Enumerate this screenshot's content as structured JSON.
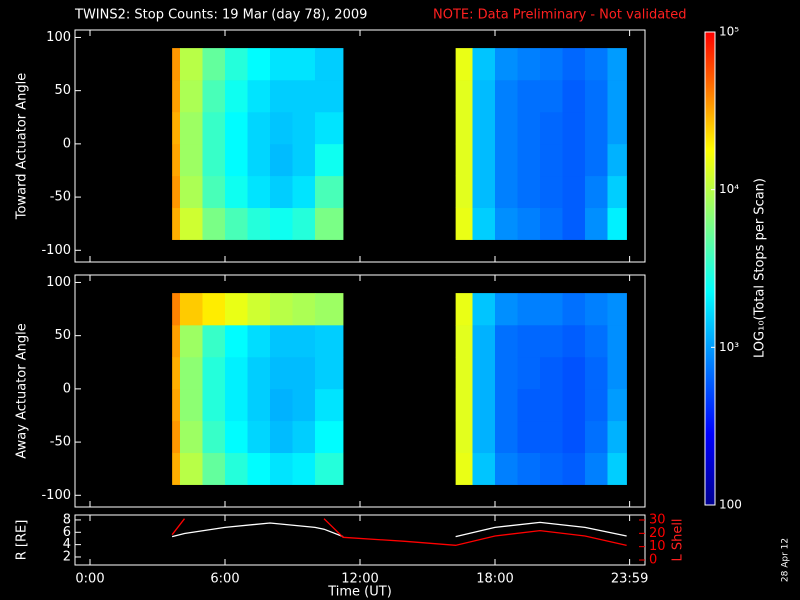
{
  "chart_data": [
    {
      "type": "heatmap",
      "title": "TWINS2: Stop Counts: 19 Mar (day  78), 2009",
      "note": "NOTE: Data Preliminary - Not validated",
      "ylabel": "Toward Actuator Angle",
      "ylim": [
        -111,
        107
      ],
      "yticks": [
        -100,
        -50,
        0,
        50,
        100
      ],
      "x_edges": [
        3.65,
        4,
        5,
        6,
        7,
        8,
        9,
        10,
        11.25,
        16.25,
        17,
        18,
        19,
        20,
        21,
        22,
        23,
        23.85
      ],
      "y_edges": [
        -90,
        -60,
        -30,
        0,
        30,
        60,
        90
      ],
      "z": [
        [
          30000,
          35000,
          32000,
          30000,
          33000,
          35000
        ],
        [
          12000,
          9000,
          8000,
          8000,
          9000,
          10000
        ],
        [
          6000,
          4000,
          3500,
          3500,
          4000,
          5000
        ],
        [
          4000,
          2500,
          2200,
          2200,
          2500,
          3000
        ],
        [
          3000,
          1800,
          1600,
          1600,
          1800,
          2200
        ],
        [
          2500,
          1500,
          1300,
          1400,
          1500,
          1800
        ],
        [
          3000,
          1800,
          1500,
          1500,
          1500,
          1800
        ],
        [
          6000,
          4000,
          2500,
          1800,
          1500,
          1500
        ],
        [
          null,
          null,
          null,
          null,
          null,
          null
        ],
        [
          15000,
          14000,
          14000,
          14000,
          14000,
          15000
        ],
        [
          1500,
          1300,
          1300,
          1300,
          1300,
          1400
        ],
        [
          900,
          800,
          800,
          800,
          800,
          900
        ],
        [
          800,
          700,
          700,
          700,
          700,
          800
        ],
        [
          700,
          650,
          650,
          650,
          700,
          750
        ],
        [
          600,
          600,
          600,
          600,
          600,
          650
        ],
        [
          900,
          800,
          700,
          700,
          700,
          750
        ],
        [
          2000,
          1500,
          1200,
          1000,
          1000,
          1000
        ]
      ]
    },
    {
      "type": "heatmap",
      "ylabel": "Away Actuator Angle",
      "ylim": [
        -111,
        107
      ],
      "yticks": [
        -100,
        -50,
        0,
        50,
        100
      ],
      "x_edges": [
        3.65,
        4,
        5,
        6,
        7,
        8,
        9,
        10,
        11.25,
        16.25,
        17,
        18,
        19,
        20,
        21,
        22,
        23,
        23.85
      ],
      "y_edges": [
        -90,
        -60,
        -30,
        0,
        30,
        60,
        90
      ],
      "z": [
        [
          30000,
          35000,
          32000,
          30000,
          33000,
          40000
        ],
        [
          10000,
          8000,
          7000,
          7000,
          8000,
          25000
        ],
        [
          5000,
          3500,
          3000,
          3000,
          3500,
          20000
        ],
        [
          3000,
          2200,
          2000,
          2000,
          2200,
          15000
        ],
        [
          2200,
          1600,
          1500,
          1500,
          1700,
          12000
        ],
        [
          1800,
          1300,
          1200,
          1300,
          1400,
          10000
        ],
        [
          2000,
          1500,
          1300,
          1300,
          1400,
          9000
        ],
        [
          3000,
          2200,
          1800,
          1500,
          1500,
          8000
        ],
        [
          null,
          null,
          null,
          null,
          null,
          null
        ],
        [
          15000,
          14000,
          14000,
          14000,
          14000,
          15000
        ],
        [
          1400,
          1200,
          1200,
          1200,
          1200,
          1400
        ],
        [
          800,
          700,
          700,
          700,
          700,
          900
        ],
        [
          700,
          600,
          600,
          650,
          650,
          800
        ],
        [
          650,
          600,
          600,
          600,
          650,
          800
        ],
        [
          600,
          550,
          550,
          550,
          600,
          700
        ],
        [
          800,
          700,
          650,
          650,
          700,
          800
        ],
        [
          1500,
          1200,
          1000,
          900,
          900,
          900
        ]
      ]
    },
    {
      "type": "line",
      "xlabel": "Time (UT)",
      "ylabel": "R [RE]",
      "y2label": "L Shell",
      "date_stamp": "28 Apr 12",
      "xlim": [
        0,
        24
      ],
      "xticks": [
        {
          "value": 0,
          "label": "0:00"
        },
        {
          "value": 6,
          "label": "6:00"
        },
        {
          "value": 12,
          "label": "12:00"
        },
        {
          "value": 18,
          "label": "18:00"
        },
        {
          "value": 23.983,
          "label": "23:59"
        }
      ],
      "ylim": [
        0.7,
        8.8
      ],
      "yticks": [
        2,
        4,
        6,
        8
      ],
      "y2lim": [
        -3.75,
        33.75
      ],
      "y2ticks": [
        0,
        10,
        20,
        30
      ],
      "x": [
        3.65,
        4.2,
        6,
        8,
        10,
        10.4,
        11.25,
        14,
        16.25,
        18,
        20,
        22,
        23.85
      ],
      "series": [
        {
          "color": "#ffffff",
          "values": [
            5.3,
            5.8,
            6.8,
            7.5,
            6.8,
            6.5,
            5.3,
            null,
            5.3,
            6.8,
            7.6,
            6.8,
            5.4
          ]
        },
        {
          "color": "#ff0000",
          "axis": "y2",
          "values": [
            19,
            31,
            null,
            null,
            null,
            31,
            17,
            14,
            11,
            18,
            22,
            18,
            11
          ]
        }
      ]
    },
    {
      "type": "colorbar",
      "label": "LOG₁₀(Total Stops per Scan)",
      "zlim": [
        100,
        100000
      ],
      "log": true,
      "zticks": [
        100,
        {
          "value": 1000,
          "label": "10³"
        },
        {
          "value": 10000,
          "label": "10⁴"
        },
        {
          "value": 100000,
          "label": "10⁵"
        }
      ]
    }
  ]
}
